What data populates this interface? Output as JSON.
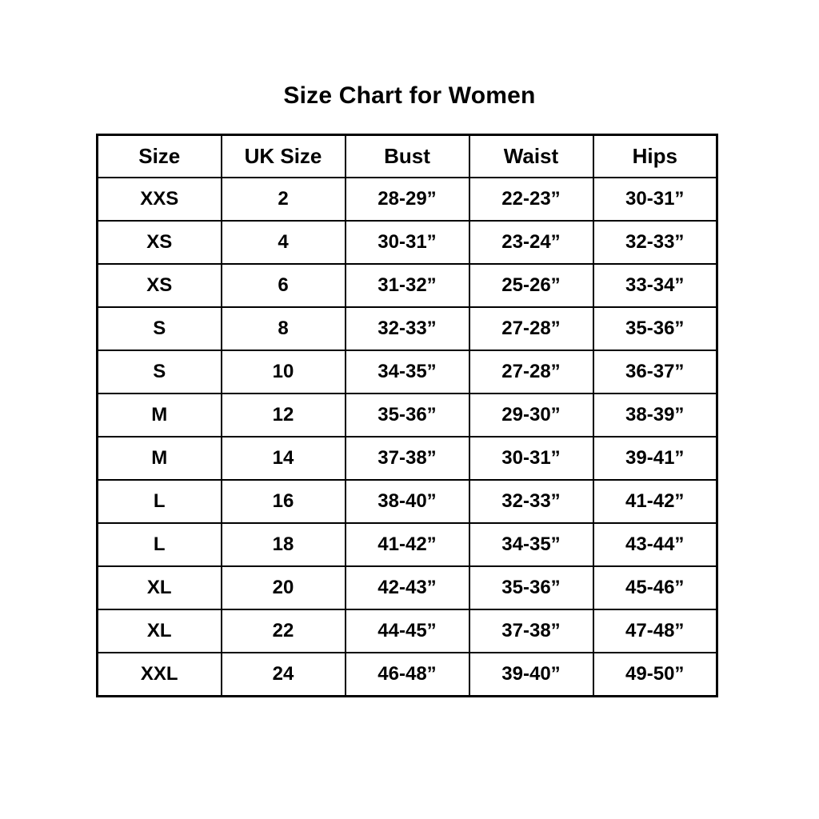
{
  "page": {
    "title": "Size Chart for Women"
  },
  "chart_data": {
    "type": "table",
    "title": "Size Chart for Women",
    "columns": [
      "Size",
      "UK Size",
      "Bust",
      "Waist",
      "Hips"
    ],
    "rows": [
      [
        "XXS",
        "2",
        "28-29”",
        "22-23”",
        "30-31”"
      ],
      [
        "XS",
        "4",
        "30-31”",
        "23-24”",
        "32-33”"
      ],
      [
        "XS",
        "6",
        "31-32”",
        "25-26”",
        "33-34”"
      ],
      [
        "S",
        "8",
        "32-33”",
        "27-28”",
        "35-36”"
      ],
      [
        "S",
        "10",
        "34-35”",
        "27-28”",
        "36-37”"
      ],
      [
        "M",
        "12",
        "35-36”",
        "29-30”",
        "38-39”"
      ],
      [
        "M",
        "14",
        "37-38”",
        "30-31”",
        "39-41”"
      ],
      [
        "L",
        "16",
        "38-40”",
        "32-33”",
        "41-42”"
      ],
      [
        "L",
        "18",
        "41-42”",
        "34-35”",
        "43-44”"
      ],
      [
        "XL",
        "20",
        "42-43”",
        "35-36”",
        "45-46”"
      ],
      [
        "XL",
        "22",
        "44-45”",
        "37-38”",
        "47-48”"
      ],
      [
        "XXL",
        "24",
        "46-48”",
        "39-40”",
        "49-50”"
      ]
    ],
    "layout": {
      "text_color": "#000000",
      "border_color": "#000000",
      "background": "#ffffff",
      "grid": true
    }
  }
}
